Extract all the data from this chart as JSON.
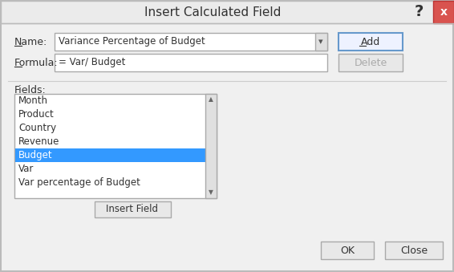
{
  "title": "Insert Calculated Field",
  "bg_color": "#f0f0f0",
  "name_label": "Name:",
  "name_value": "Variance Percentage of Budget",
  "formula_label": "Formula:",
  "formula_value": "= Var/ Budget",
  "fields_label": "Fields:",
  "fields_items": [
    "Month",
    "Product",
    "Country",
    "Revenue",
    "Budget",
    "Var",
    "Var percentage of Budget"
  ],
  "selected_item": "Budget",
  "selected_color": "#3399ff",
  "selected_text_color": "#ffffff",
  "btn_add": "Add",
  "btn_delete": "Delete",
  "btn_insert": "Insert Field",
  "btn_ok": "OK",
  "btn_close": "Close",
  "close_btn_color": "#d9534f",
  "list_bg": "#ffffff",
  "input_bg": "#ffffff",
  "border_color": "#aaaaaa",
  "text_color": "#333333",
  "gray_text": "#aaaaaa",
  "dark_border": "#999999"
}
